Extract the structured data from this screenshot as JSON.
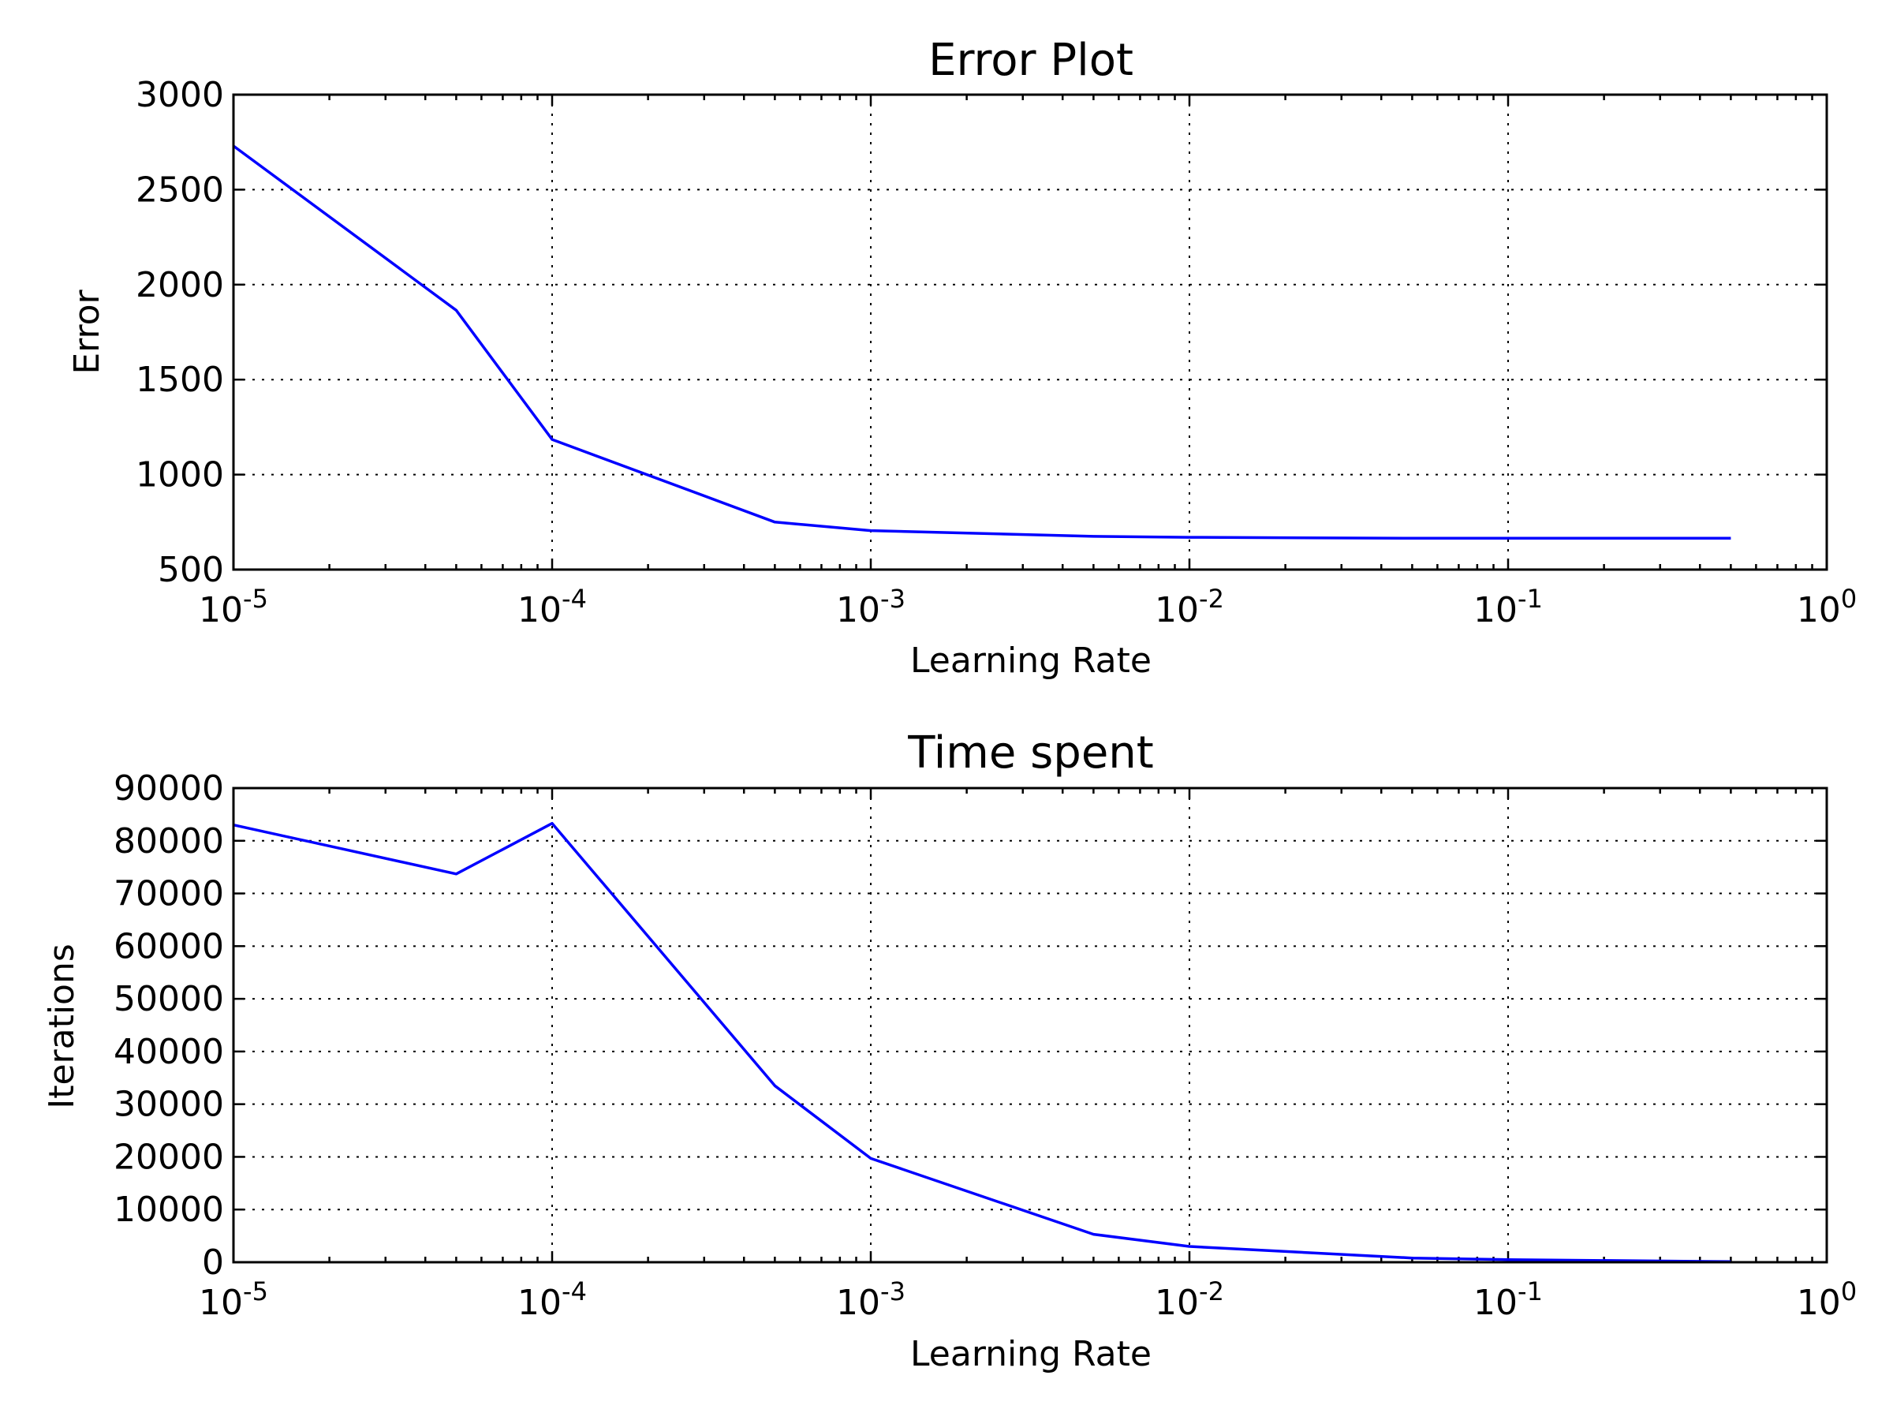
{
  "chart_data": [
    {
      "type": "line",
      "title": "Error Plot",
      "xlabel": "Learning Rate",
      "ylabel": "Error",
      "xscale": "log",
      "xlim": [
        1e-05,
        1
      ],
      "ylim": [
        500,
        3000
      ],
      "x_ticks": [
        "10^-5",
        "10^-4",
        "10^-3",
        "10^-2",
        "10^-1",
        "10^0"
      ],
      "y_ticks": [
        500,
        1000,
        1500,
        2000,
        2500,
        3000
      ],
      "grid": true,
      "line_color": "#0000ff",
      "series": [
        {
          "x": [
            1e-05,
            5e-05,
            0.0001,
            0.0005,
            0.001,
            0.005,
            0.01,
            0.05,
            0.1,
            0.5
          ],
          "values": [
            2730,
            1865,
            1185,
            750,
            705,
            675,
            670,
            665,
            665,
            665
          ]
        }
      ]
    },
    {
      "type": "line",
      "title": "Time spent",
      "xlabel": "Learning Rate",
      "ylabel": "Iterations",
      "xscale": "log",
      "xlim": [
        1e-05,
        1
      ],
      "ylim": [
        0,
        90000
      ],
      "x_ticks": [
        "10^-5",
        "10^-4",
        "10^-3",
        "10^-2",
        "10^-1",
        "10^0"
      ],
      "y_ticks": [
        0,
        10000,
        20000,
        30000,
        40000,
        50000,
        60000,
        70000,
        80000,
        90000
      ],
      "grid": true,
      "line_color": "#0000ff",
      "series": [
        {
          "x": [
            1e-05,
            5e-05,
            0.0001,
            0.0005,
            0.001,
            0.005,
            0.01,
            0.05,
            0.1,
            0.5
          ],
          "values": [
            83000,
            73700,
            83300,
            33500,
            19700,
            5300,
            3000,
            800,
            500,
            100
          ]
        }
      ]
    }
  ]
}
